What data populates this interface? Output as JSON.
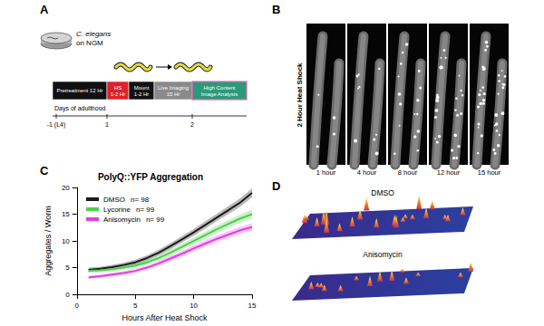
{
  "panels": {
    "A": {
      "label": "A",
      "dish_text": [
        "C. elegans",
        "on NGM"
      ],
      "timeline": [
        {
          "lines": [
            "Pretreatment 12 Hr"
          ],
          "color": "#111111"
        },
        {
          "lines": [
            "HS",
            "1-2 Hr"
          ],
          "color": "#e0202a"
        },
        {
          "lines": [
            "Mount",
            "1-2 Hr"
          ],
          "color": "#111111"
        },
        {
          "lines": [
            "Live Imaging",
            "15 Hr"
          ],
          "color": "#8a8a8a"
        },
        {
          "lines": [
            "High Content",
            "Image Analysis"
          ],
          "color": "#2a9a7a"
        }
      ],
      "axis_label": "Days of adulthood",
      "axis_ticks": [
        "-1 (L4)",
        "1",
        "2"
      ]
    },
    "B": {
      "label": "B",
      "side_title": "2 Hour Heat Shock",
      "frames": [
        "1 hour",
        "4 hour",
        "8 hour",
        "12 hour",
        "15 hour"
      ]
    },
    "D": {
      "label": "D",
      "images": [
        "DMSO",
        "Anisomycin"
      ]
    }
  },
  "chart_data": {
    "panel_label": "C",
    "type": "line",
    "title": "PolyQ::YFP Aggregation",
    "x_label": "Hours After Heat Shock",
    "y_label": "Aggregates / Worm",
    "x": [
      1,
      2,
      3,
      4,
      5,
      6,
      7,
      8,
      9,
      10,
      11,
      12,
      13,
      14,
      15
    ],
    "series": [
      {
        "name": "DMSO",
        "n_label": "n= 98",
        "color": "#1a1a1a",
        "values": [
          4.6,
          4.8,
          5.1,
          5.5,
          6.0,
          6.8,
          7.8,
          9.0,
          10.3,
          11.6,
          13.0,
          14.4,
          15.8,
          17.2,
          19.0
        ],
        "errors": [
          0.4,
          0.4,
          0.4,
          0.45,
          0.5,
          0.5,
          0.55,
          0.6,
          0.6,
          0.65,
          0.7,
          0.7,
          0.75,
          0.8,
          0.85
        ]
      },
      {
        "name": "Lycorine",
        "n_label": "n= 99",
        "color": "#4cd04c",
        "values": [
          4.4,
          4.5,
          4.7,
          5.0,
          5.4,
          6.0,
          6.8,
          7.8,
          8.9,
          10.0,
          11.1,
          12.2,
          13.2,
          14.2,
          15.0
        ],
        "errors": [
          0.35,
          0.35,
          0.4,
          0.4,
          0.45,
          0.45,
          0.5,
          0.55,
          0.6,
          0.6,
          0.65,
          0.7,
          0.7,
          0.75,
          0.8
        ]
      },
      {
        "name": "Anisomycin",
        "n_label": "n= 99",
        "color": "#e040e0",
        "values": [
          3.2,
          3.4,
          3.7,
          4.0,
          4.4,
          5.0,
          5.8,
          6.7,
          7.6,
          8.6,
          9.5,
          10.4,
          11.2,
          12.0,
          12.6
        ],
        "errors": [
          0.3,
          0.3,
          0.35,
          0.35,
          0.4,
          0.4,
          0.45,
          0.5,
          0.5,
          0.55,
          0.6,
          0.6,
          0.65,
          0.65,
          0.7
        ]
      }
    ],
    "xlim": [
      0,
      15
    ],
    "xticks": [
      0,
      5,
      10,
      15
    ],
    "ylim": [
      0,
      20
    ],
    "yticks": [
      0,
      5,
      10,
      15,
      20
    ],
    "grid": false,
    "legend": "upper left"
  }
}
